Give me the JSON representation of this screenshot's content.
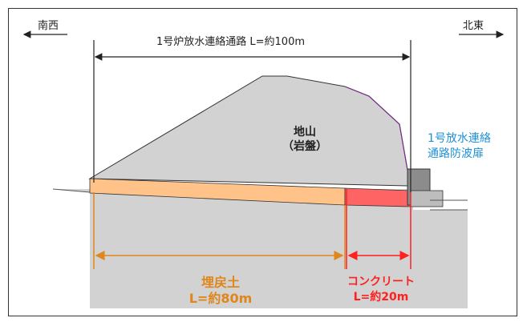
{
  "directions": {
    "left": "南西",
    "right": "北東"
  },
  "channel_title": "1号炉放水連絡通路 L=約100m",
  "rock_label": {
    "line1": "地山",
    "line2": "（岩盤）"
  },
  "gate_label": {
    "line1": "1号放水連絡",
    "line2": "通路防波扉"
  },
  "backfill_label": {
    "line1": "埋戻土",
    "line2": "L=約80m"
  },
  "concrete_label": {
    "line1": "コンクリート",
    "line2": "L=約20m"
  },
  "colors": {
    "ground": "#d2d2d2",
    "backfill": "#ffc38a",
    "concrete": "#ff6464",
    "backfill_dim": "#e0861a",
    "concrete_dim": "#ff2020",
    "gate_text": "#1e90d6",
    "outline": "#333333",
    "cliff_edge": "#7a2a8a"
  }
}
